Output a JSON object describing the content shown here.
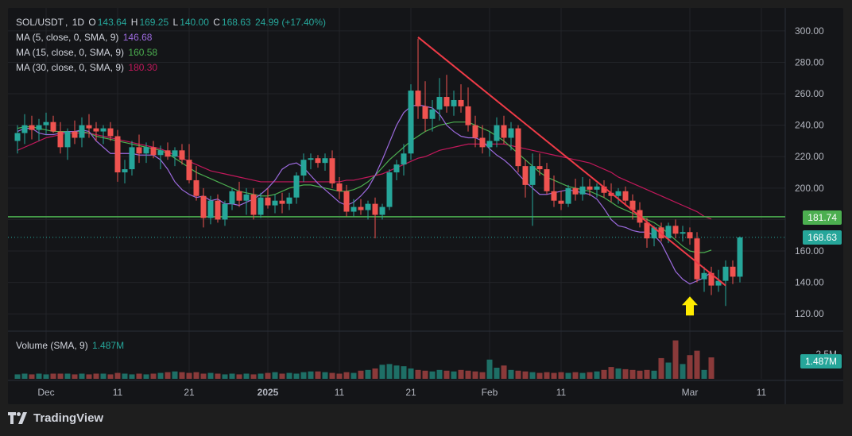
{
  "legend": {
    "symbol": "SOL/USDT",
    "sep": ",",
    "interval": "1D",
    "o_label": "O",
    "o": "143.64",
    "h_label": "H",
    "h": "169.25",
    "l_label": "L",
    "l": "140.00",
    "c_label": "C",
    "c": "168.63",
    "change": "24.99 (+17.40%)",
    "ma5_label": "MA (5, close, 0, SMA, 9)",
    "ma5_value": "146.68",
    "ma15_label": "MA (15, close, 0, SMA, 9)",
    "ma15_value": "160.58",
    "ma30_label": "MA (30, close, 0, SMA, 9)",
    "ma30_value": "180.30",
    "volume_label": "Volume (SMA, 9)",
    "volume_value": "1.487M"
  },
  "tags": {
    "support": "181.74",
    "last_price": "168.63",
    "volume": "1.487M",
    "volume_axis": "2.5M"
  },
  "brand": {
    "name": "TradingView"
  },
  "colors": {
    "up": "#26a69a",
    "down": "#ef5350",
    "ma5": "#9c6ade",
    "ma15": "#4caf50",
    "ma30": "#c2185b",
    "support": "#4caf50",
    "trendline": "#ef3b47",
    "arrow": "#ffeb00"
  },
  "chart_data": {
    "type": "candlestick",
    "ylim": [
      110,
      306
    ],
    "y_ticks": [
      300,
      280,
      260,
      240,
      220,
      200,
      160,
      140,
      120
    ],
    "x_ticks": [
      {
        "label": "Dec",
        "day": 0,
        "bold": false
      },
      {
        "label": "11",
        "day": 10,
        "bold": false
      },
      {
        "label": "21",
        "day": 20,
        "bold": false
      },
      {
        "label": "2025",
        "day": 31,
        "bold": true
      },
      {
        "label": "11",
        "day": 41,
        "bold": false
      },
      {
        "label": "21",
        "day": 51,
        "bold": false
      },
      {
        "label": "Feb",
        "day": 62,
        "bold": false
      },
      {
        "label": "11",
        "day": 72,
        "bold": false
      },
      {
        "label": "Mar",
        "day": 90,
        "bold": false
      },
      {
        "label": "11",
        "day": 100,
        "bold": false
      }
    ],
    "support_level": 181.74,
    "last_close": 168.63,
    "trendline": {
      "from": {
        "day": 52,
        "price": 296
      },
      "to": {
        "day": 95,
        "price": 138
      }
    },
    "signal_arrow": {
      "day": 90,
      "price": 125
    },
    "candles": [
      {
        "day": -4,
        "o": 230,
        "h": 240,
        "l": 222,
        "c": 235
      },
      {
        "day": -3,
        "o": 235,
        "h": 247,
        "l": 228,
        "c": 240
      },
      {
        "day": -2,
        "o": 240,
        "h": 246,
        "l": 231,
        "c": 237
      },
      {
        "day": -1,
        "o": 237,
        "h": 244,
        "l": 230,
        "c": 240
      },
      {
        "day": 0,
        "o": 240,
        "h": 248,
        "l": 234,
        "c": 242
      },
      {
        "day": 1,
        "o": 242,
        "h": 246,
        "l": 235,
        "c": 236
      },
      {
        "day": 2,
        "o": 236,
        "h": 242,
        "l": 222,
        "c": 226
      },
      {
        "day": 3,
        "o": 226,
        "h": 238,
        "l": 218,
        "c": 236
      },
      {
        "day": 4,
        "o": 236,
        "h": 243,
        "l": 228,
        "c": 232
      },
      {
        "day": 5,
        "o": 232,
        "h": 245,
        "l": 226,
        "c": 240
      },
      {
        "day": 6,
        "o": 240,
        "h": 247,
        "l": 232,
        "c": 238
      },
      {
        "day": 7,
        "o": 238,
        "h": 242,
        "l": 230,
        "c": 236
      },
      {
        "day": 8,
        "o": 236,
        "h": 240,
        "l": 228,
        "c": 238
      },
      {
        "day": 9,
        "o": 238,
        "h": 242,
        "l": 230,
        "c": 233
      },
      {
        "day": 10,
        "o": 233,
        "h": 237,
        "l": 204,
        "c": 210
      },
      {
        "day": 11,
        "o": 210,
        "h": 218,
        "l": 203,
        "c": 212
      },
      {
        "day": 12,
        "o": 212,
        "h": 230,
        "l": 208,
        "c": 226
      },
      {
        "day": 13,
        "o": 226,
        "h": 234,
        "l": 216,
        "c": 222
      },
      {
        "day": 14,
        "o": 222,
        "h": 229,
        "l": 216,
        "c": 226
      },
      {
        "day": 15,
        "o": 226,
        "h": 230,
        "l": 219,
        "c": 221
      },
      {
        "day": 16,
        "o": 221,
        "h": 227,
        "l": 212,
        "c": 224
      },
      {
        "day": 17,
        "o": 224,
        "h": 229,
        "l": 218,
        "c": 220
      },
      {
        "day": 18,
        "o": 220,
        "h": 226,
        "l": 214,
        "c": 224
      },
      {
        "day": 19,
        "o": 224,
        "h": 228,
        "l": 215,
        "c": 218
      },
      {
        "day": 20,
        "o": 218,
        "h": 228,
        "l": 203,
        "c": 205
      },
      {
        "day": 21,
        "o": 205,
        "h": 214,
        "l": 192,
        "c": 195
      },
      {
        "day": 22,
        "o": 195,
        "h": 200,
        "l": 175,
        "c": 181
      },
      {
        "day": 23,
        "o": 181,
        "h": 195,
        "l": 177,
        "c": 192
      },
      {
        "day": 24,
        "o": 192,
        "h": 196,
        "l": 178,
        "c": 180
      },
      {
        "day": 25,
        "o": 180,
        "h": 192,
        "l": 176,
        "c": 190
      },
      {
        "day": 26,
        "o": 190,
        "h": 200,
        "l": 186,
        "c": 198
      },
      {
        "day": 27,
        "o": 198,
        "h": 204,
        "l": 188,
        "c": 192
      },
      {
        "day": 28,
        "o": 192,
        "h": 200,
        "l": 183,
        "c": 196
      },
      {
        "day": 29,
        "o": 196,
        "h": 200,
        "l": 180,
        "c": 183
      },
      {
        "day": 30,
        "o": 183,
        "h": 197,
        "l": 181,
        "c": 194
      },
      {
        "day": 31,
        "o": 194,
        "h": 200,
        "l": 187,
        "c": 189
      },
      {
        "day": 32,
        "o": 189,
        "h": 196,
        "l": 184,
        "c": 192
      },
      {
        "day": 33,
        "o": 192,
        "h": 197,
        "l": 184,
        "c": 190
      },
      {
        "day": 34,
        "o": 190,
        "h": 197,
        "l": 186,
        "c": 194
      },
      {
        "day": 35,
        "o": 194,
        "h": 210,
        "l": 190,
        "c": 208
      },
      {
        "day": 36,
        "o": 208,
        "h": 222,
        "l": 204,
        "c": 218
      },
      {
        "day": 37,
        "o": 218,
        "h": 222,
        "l": 212,
        "c": 219
      },
      {
        "day": 38,
        "o": 219,
        "h": 221,
        "l": 213,
        "c": 216
      },
      {
        "day": 39,
        "o": 216,
        "h": 222,
        "l": 211,
        "c": 219
      },
      {
        "day": 40,
        "o": 219,
        "h": 224,
        "l": 200,
        "c": 203
      },
      {
        "day": 41,
        "o": 203,
        "h": 207,
        "l": 193,
        "c": 198
      },
      {
        "day": 42,
        "o": 198,
        "h": 202,
        "l": 182,
        "c": 185
      },
      {
        "day": 43,
        "o": 185,
        "h": 193,
        "l": 182,
        "c": 188
      },
      {
        "day": 44,
        "o": 188,
        "h": 193,
        "l": 183,
        "c": 186
      },
      {
        "day": 45,
        "o": 186,
        "h": 192,
        "l": 180,
        "c": 190
      },
      {
        "day": 46,
        "o": 190,
        "h": 194,
        "l": 168,
        "c": 183
      },
      {
        "day": 47,
        "o": 183,
        "h": 190,
        "l": 180,
        "c": 188
      },
      {
        "day": 48,
        "o": 188,
        "h": 212,
        "l": 186,
        "c": 210
      },
      {
        "day": 49,
        "o": 210,
        "h": 218,
        "l": 205,
        "c": 215
      },
      {
        "day": 50,
        "o": 215,
        "h": 228,
        "l": 208,
        "c": 222
      },
      {
        "day": 51,
        "o": 222,
        "h": 266,
        "l": 218,
        "c": 262
      },
      {
        "day": 52,
        "o": 262,
        "h": 295,
        "l": 244,
        "c": 252
      },
      {
        "day": 53,
        "o": 252,
        "h": 268,
        "l": 236,
        "c": 244
      },
      {
        "day": 54,
        "o": 244,
        "h": 256,
        "l": 236,
        "c": 250
      },
      {
        "day": 55,
        "o": 250,
        "h": 270,
        "l": 243,
        "c": 258
      },
      {
        "day": 56,
        "o": 258,
        "h": 272,
        "l": 248,
        "c": 252
      },
      {
        "day": 57,
        "o": 252,
        "h": 262,
        "l": 246,
        "c": 256
      },
      {
        "day": 58,
        "o": 256,
        "h": 266,
        "l": 248,
        "c": 252
      },
      {
        "day": 59,
        "o": 252,
        "h": 264,
        "l": 236,
        "c": 240
      },
      {
        "day": 60,
        "o": 240,
        "h": 246,
        "l": 226,
        "c": 232
      },
      {
        "day": 61,
        "o": 232,
        "h": 240,
        "l": 222,
        "c": 226
      },
      {
        "day": 62,
        "o": 226,
        "h": 236,
        "l": 220,
        "c": 230
      },
      {
        "day": 63,
        "o": 230,
        "h": 245,
        "l": 226,
        "c": 240
      },
      {
        "day": 64,
        "o": 240,
        "h": 246,
        "l": 228,
        "c": 232
      },
      {
        "day": 65,
        "o": 232,
        "h": 242,
        "l": 224,
        "c": 238
      },
      {
        "day": 66,
        "o": 238,
        "h": 240,
        "l": 210,
        "c": 214
      },
      {
        "day": 67,
        "o": 214,
        "h": 218,
        "l": 194,
        "c": 202
      },
      {
        "day": 68,
        "o": 202,
        "h": 222,
        "l": 176,
        "c": 214
      },
      {
        "day": 69,
        "o": 214,
        "h": 222,
        "l": 208,
        "c": 212
      },
      {
        "day": 70,
        "o": 212,
        "h": 216,
        "l": 196,
        "c": 198
      },
      {
        "day": 71,
        "o": 198,
        "h": 208,
        "l": 188,
        "c": 192
      },
      {
        "day": 72,
        "o": 192,
        "h": 198,
        "l": 186,
        "c": 190
      },
      {
        "day": 73,
        "o": 190,
        "h": 202,
        "l": 188,
        "c": 200
      },
      {
        "day": 74,
        "o": 200,
        "h": 206,
        "l": 192,
        "c": 196
      },
      {
        "day": 75,
        "o": 196,
        "h": 207,
        "l": 192,
        "c": 201
      },
      {
        "day": 76,
        "o": 201,
        "h": 206,
        "l": 195,
        "c": 199
      },
      {
        "day": 77,
        "o": 199,
        "h": 203,
        "l": 194,
        "c": 201
      },
      {
        "day": 78,
        "o": 201,
        "h": 205,
        "l": 194,
        "c": 197
      },
      {
        "day": 79,
        "o": 197,
        "h": 203,
        "l": 191,
        "c": 195
      },
      {
        "day": 80,
        "o": 195,
        "h": 200,
        "l": 190,
        "c": 198
      },
      {
        "day": 81,
        "o": 198,
        "h": 201,
        "l": 189,
        "c": 192
      },
      {
        "day": 82,
        "o": 192,
        "h": 196,
        "l": 180,
        "c": 186
      },
      {
        "day": 83,
        "o": 186,
        "h": 191,
        "l": 175,
        "c": 178
      },
      {
        "day": 84,
        "o": 178,
        "h": 181,
        "l": 162,
        "c": 168
      },
      {
        "day": 85,
        "o": 168,
        "h": 176,
        "l": 163,
        "c": 175
      },
      {
        "day": 86,
        "o": 175,
        "h": 178,
        "l": 166,
        "c": 168
      },
      {
        "day": 87,
        "o": 168,
        "h": 178,
        "l": 165,
        "c": 176
      },
      {
        "day": 88,
        "o": 176,
        "h": 180,
        "l": 168,
        "c": 171
      },
      {
        "day": 89,
        "o": 171,
        "h": 176,
        "l": 166,
        "c": 172
      },
      {
        "day": 90,
        "o": 172,
        "h": 175,
        "l": 164,
        "c": 168
      },
      {
        "day": 91,
        "o": 168,
        "h": 172,
        "l": 140,
        "c": 142
      },
      {
        "day": 92,
        "o": 142,
        "h": 150,
        "l": 134,
        "c": 146
      },
      {
        "day": 93,
        "o": 146,
        "h": 150,
        "l": 132,
        "c": 138
      },
      {
        "day": 94,
        "o": 138,
        "h": 148,
        "l": 134,
        "c": 141
      },
      {
        "day": 95,
        "o": 141,
        "h": 154,
        "l": 125,
        "c": 150
      },
      {
        "day": 96,
        "o": 150,
        "h": 154,
        "l": 139,
        "c": 143.64
      },
      {
        "day": 97,
        "o": 143.64,
        "h": 169.25,
        "l": 140,
        "c": 168.63
      }
    ],
    "volume_axis_max": 2.9,
    "volumes": [
      0.3,
      0.35,
      0.3,
      0.35,
      0.3,
      0.35,
      0.35,
      0.35,
      0.3,
      0.35,
      0.3,
      0.35,
      0.35,
      0.3,
      0.4,
      0.35,
      0.3,
      0.35,
      0.3,
      0.35,
      0.4,
      0.45,
      0.5,
      0.45,
      0.4,
      0.45,
      0.35,
      0.4,
      0.35,
      0.3,
      0.35,
      0.3,
      0.35,
      0.3,
      0.35,
      0.4,
      0.45,
      0.35,
      0.4,
      0.35,
      0.45,
      0.5,
      0.5,
      0.45,
      0.4,
      0.35,
      0.45,
      0.4,
      0.55,
      0.6,
      0.7,
      0.95,
      1.0,
      0.9,
      0.85,
      0.7,
      0.6,
      0.55,
      0.5,
      0.6,
      0.55,
      0.5,
      0.6,
      0.55,
      0.5,
      0.45,
      1.3,
      0.75,
      0.9,
      0.6,
      0.55,
      0.5,
      0.45,
      0.4,
      0.45,
      0.4,
      0.45,
      0.4,
      0.45,
      0.4,
      0.45,
      0.5,
      0.6,
      0.8,
      0.7,
      0.65,
      0.6,
      0.55,
      0.6,
      0.55,
      1.4,
      1.1,
      2.6,
      1.0,
      1.6,
      1.9,
      0.6,
      1.45
    ],
    "ma5": [
      236,
      238,
      238,
      235,
      234,
      234,
      235,
      236,
      236,
      237,
      236,
      230,
      226,
      222,
      222,
      222,
      222,
      221,
      221,
      221,
      218,
      212,
      204,
      199,
      196,
      194,
      195,
      192,
      193,
      190,
      190,
      189,
      191,
      193,
      196,
      200,
      205,
      212,
      215,
      216,
      213,
      208,
      203,
      199,
      195,
      191,
      189,
      191,
      195,
      200,
      208,
      218,
      229,
      240,
      248,
      252,
      253,
      252,
      251,
      247,
      240,
      236,
      233,
      232,
      232,
      230,
      225,
      221,
      218,
      214,
      209,
      204,
      200,
      196,
      196,
      197,
      198,
      199,
      198,
      197,
      196,
      193,
      187,
      180,
      176,
      175,
      173,
      172,
      172,
      170,
      165,
      156,
      147,
      142,
      139,
      141,
      143,
      146.68
    ],
    "ma15": [
      238,
      239,
      239,
      238,
      237,
      236,
      236,
      236,
      236,
      236,
      235,
      233,
      232,
      231,
      230,
      229,
      228,
      227,
      226,
      225,
      224,
      222,
      219,
      216,
      213,
      210,
      208,
      206,
      204,
      202,
      200,
      198,
      197,
      196,
      195,
      195,
      196,
      198,
      200,
      201,
      202,
      202,
      201,
      200,
      199,
      198,
      198,
      199,
      201,
      204,
      208,
      213,
      218,
      222,
      226,
      230,
      233,
      236,
      238,
      240,
      241,
      242,
      242,
      242,
      240,
      238,
      236,
      233,
      230,
      226,
      222,
      218,
      214,
      210,
      207,
      205,
      203,
      201,
      200,
      199,
      198,
      196,
      194,
      191,
      188,
      186,
      184,
      182,
      180,
      178,
      175,
      171,
      167,
      163,
      160,
      159,
      159,
      160.58
    ],
    "ma30": [
      224,
      226,
      228,
      230,
      232,
      233,
      234,
      235,
      235,
      235,
      235,
      234,
      233,
      232,
      231,
      230,
      229,
      228,
      227,
      226,
      225,
      223,
      221,
      219,
      217,
      215,
      213,
      211,
      210,
      209,
      208,
      207,
      206,
      205,
      204,
      204,
      204,
      204,
      204,
      204,
      204,
      204,
      204,
      204,
      204,
      204,
      205,
      205,
      206,
      207,
      208,
      209,
      211,
      213,
      215,
      217,
      219,
      220,
      222,
      224,
      225,
      226,
      227,
      228,
      228,
      228,
      228,
      228,
      228,
      227,
      226,
      225,
      224,
      223,
      222,
      221,
      220,
      219,
      218,
      217,
      216,
      214,
      212,
      210,
      207,
      205,
      203,
      201,
      199,
      197,
      195,
      193,
      191,
      189,
      187,
      185,
      182,
      180.3
    ]
  }
}
